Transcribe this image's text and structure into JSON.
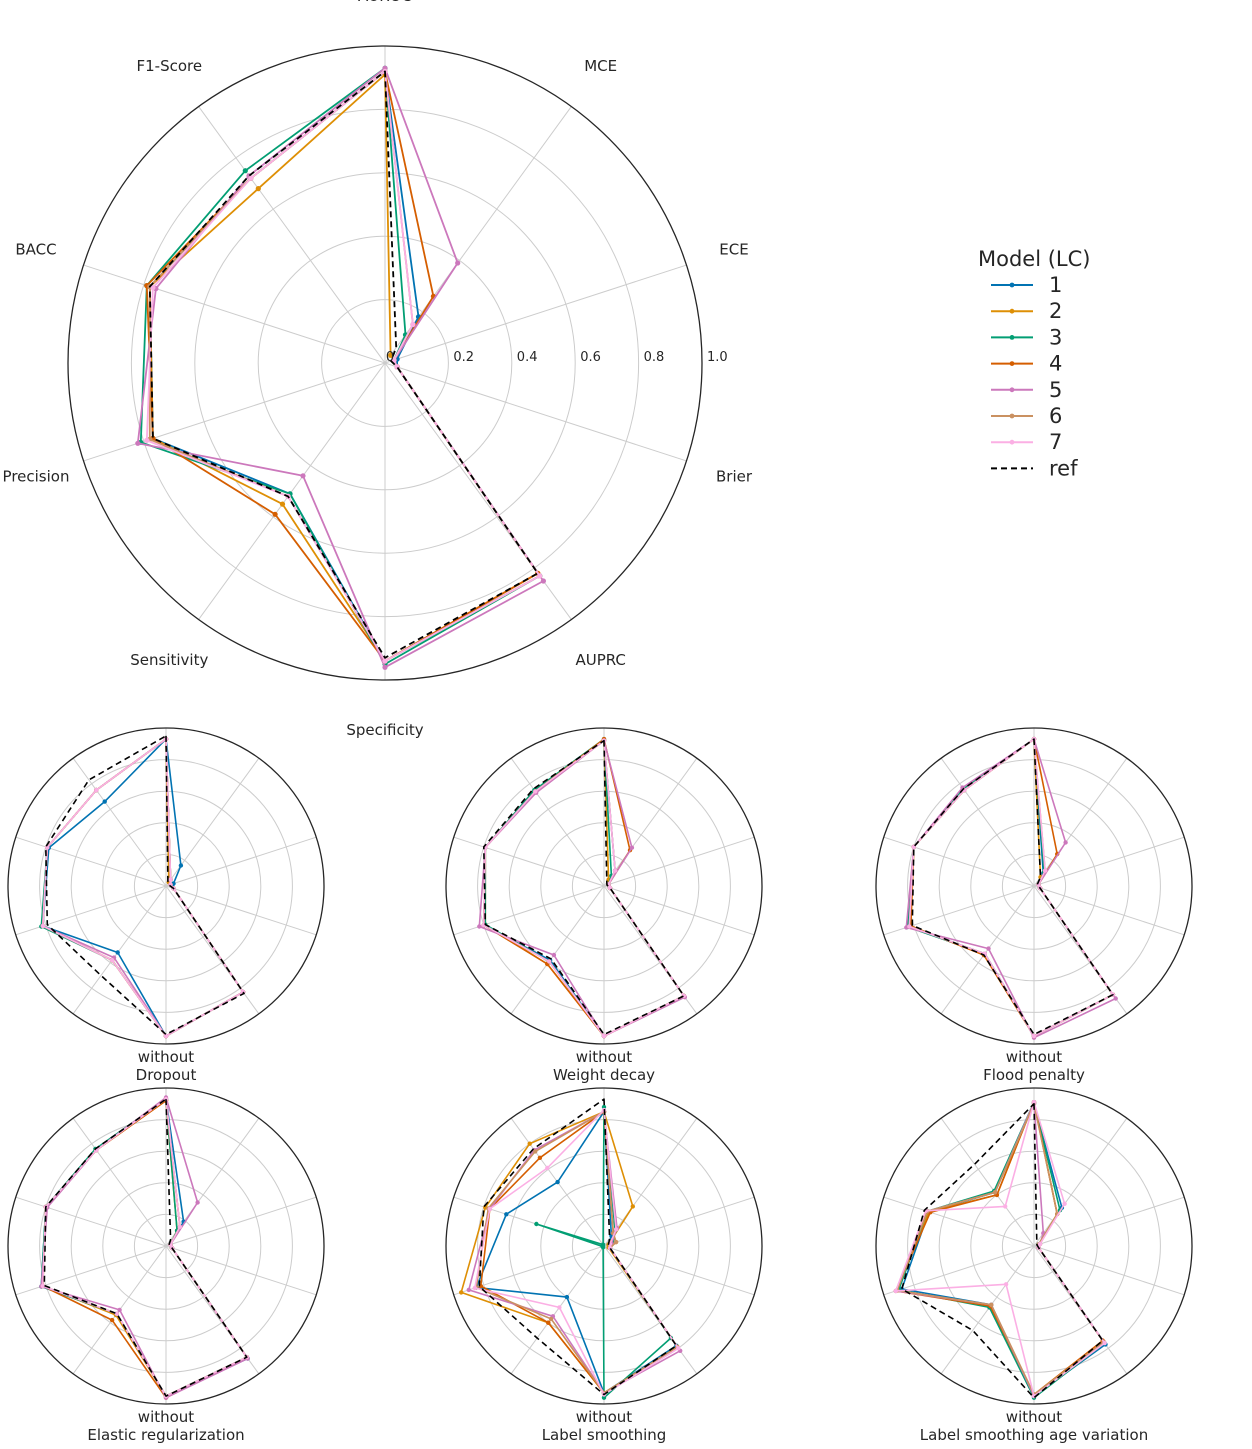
{
  "chart_data": {
    "type": "radar",
    "axes": [
      "AUROC",
      "MCE",
      "ECE",
      "Brier",
      "AUPRC",
      "Specificity",
      "Sensitivity",
      "Precision",
      "BACC",
      "F1-Score"
    ],
    "rlim": [
      0,
      1
    ],
    "radial_ticks": [
      "0",
      "0.2",
      "0.4",
      "0.6",
      "0.8",
      "1.0"
    ],
    "grid": true,
    "legend": {
      "title": "Model (LC)",
      "position": "right",
      "entries": [
        "1",
        "2",
        "3",
        "4",
        "5",
        "6",
        "7",
        "ref"
      ]
    },
    "colors": {
      "1": "#0173b2",
      "2": "#de8f05",
      "3": "#029e73",
      "4": "#d55e00",
      "5": "#cc78bc",
      "6": "#ca9161",
      "7": "#fbafe4",
      "ref": "#000000"
    },
    "panels": [
      {
        "id": "main",
        "caption": [
          "",
          ""
        ],
        "series": {
          "1": [
            0.92,
            0.18,
            0.04,
            0.04,
            0.83,
            0.94,
            0.51,
            0.77,
            0.78,
            0.72
          ],
          "2": [
            0.91,
            0.03,
            0.03,
            0.04,
            0.82,
            0.94,
            0.55,
            0.77,
            0.78,
            0.68
          ],
          "3": [
            0.93,
            0.11,
            0.03,
            0.04,
            0.83,
            0.95,
            0.51,
            0.81,
            0.79,
            0.75
          ],
          "4": [
            0.92,
            0.26,
            0.03,
            0.04,
            0.82,
            0.94,
            0.59,
            0.77,
            0.79,
            0.72
          ],
          "5": [
            0.93,
            0.39,
            0.03,
            0.04,
            0.85,
            0.96,
            0.44,
            0.82,
            0.76,
            0.73
          ],
          "6": [
            0.92,
            0.15,
            0.03,
            0.04,
            0.83,
            0.94,
            0.52,
            0.78,
            0.78,
            0.72
          ],
          "7": [
            0.92,
            0.15,
            0.03,
            0.04,
            0.83,
            0.94,
            0.52,
            0.79,
            0.77,
            0.72
          ],
          "ref": [
            0.92,
            0.06,
            0.02,
            0.04,
            0.82,
            0.93,
            0.52,
            0.77,
            0.78,
            0.73
          ]
        }
      },
      {
        "id": "no-dropout",
        "caption": [
          "without",
          "Dropout"
        ],
        "series": {
          "1": [
            0.93,
            0.16,
            0.05,
            0.05,
            0.83,
            0.95,
            0.52,
            0.82,
            0.78,
            0.66
          ],
          "2": [
            0.93,
            0.03,
            0.03,
            0.05,
            0.83,
            0.95,
            0.58,
            0.82,
            0.79,
            0.75
          ],
          "3": [
            0.93,
            0.05,
            0.03,
            0.05,
            0.83,
            0.95,
            0.58,
            0.83,
            0.79,
            0.75
          ],
          "4": [
            0.93,
            0.05,
            0.03,
            0.05,
            0.83,
            0.95,
            0.58,
            0.82,
            0.79,
            0.75
          ],
          "5": [
            0.93,
            0.05,
            0.03,
            0.05,
            0.83,
            0.95,
            0.56,
            0.82,
            0.79,
            0.75
          ],
          "6": [
            0.93,
            0.05,
            0.03,
            0.05,
            0.83,
            0.95,
            0.58,
            0.82,
            0.79,
            0.75
          ],
          "7": [
            0.93,
            0.05,
            0.03,
            0.05,
            0.83,
            0.95,
            0.58,
            0.82,
            0.79,
            0.75
          ],
          "ref": [
            0.95,
            0.02,
            0.02,
            0.05,
            0.84,
            0.94,
            0.7,
            0.79,
            0.8,
            0.83
          ]
        }
      },
      {
        "id": "no-weight-decay",
        "caption": [
          "without",
          "Weight decay"
        ],
        "series": {
          "1": [
            0.92,
            0.12,
            0.03,
            0.04,
            0.86,
            0.95,
            0.58,
            0.8,
            0.79,
            0.74
          ],
          "2": [
            0.92,
            0.05,
            0.03,
            0.04,
            0.86,
            0.95,
            0.61,
            0.79,
            0.79,
            0.74
          ],
          "3": [
            0.93,
            0.08,
            0.03,
            0.04,
            0.86,
            0.95,
            0.59,
            0.79,
            0.79,
            0.75
          ],
          "4": [
            0.93,
            0.28,
            0.03,
            0.04,
            0.86,
            0.95,
            0.61,
            0.8,
            0.79,
            0.74
          ],
          "5": [
            0.92,
            0.3,
            0.03,
            0.04,
            0.87,
            0.95,
            0.54,
            0.83,
            0.79,
            0.73
          ],
          "6": [
            0.92,
            0.12,
            0.03,
            0.04,
            0.86,
            0.95,
            0.59,
            0.8,
            0.79,
            0.74
          ],
          "7": [
            0.92,
            0.12,
            0.03,
            0.04,
            0.86,
            0.95,
            0.59,
            0.8,
            0.79,
            0.74
          ],
          "ref": [
            0.92,
            0.03,
            0.02,
            0.04,
            0.86,
            0.94,
            0.57,
            0.79,
            0.8,
            0.76
          ]
        }
      },
      {
        "id": "no-flood-penalty",
        "caption": [
          "without",
          "Flood penalty"
        ],
        "series": {
          "1": [
            0.93,
            0.1,
            0.03,
            0.04,
            0.85,
            0.95,
            0.53,
            0.83,
            0.8,
            0.75
          ],
          "2": [
            0.93,
            0.07,
            0.03,
            0.04,
            0.85,
            0.95,
            0.54,
            0.82,
            0.8,
            0.75
          ],
          "3": [
            0.93,
            0.11,
            0.03,
            0.04,
            0.85,
            0.95,
            0.53,
            0.84,
            0.8,
            0.76
          ],
          "4": [
            0.93,
            0.25,
            0.03,
            0.04,
            0.85,
            0.95,
            0.54,
            0.82,
            0.8,
            0.75
          ],
          "5": [
            0.93,
            0.34,
            0.03,
            0.04,
            0.88,
            0.96,
            0.49,
            0.85,
            0.8,
            0.77
          ],
          "6": [
            0.93,
            0.12,
            0.03,
            0.04,
            0.85,
            0.95,
            0.53,
            0.83,
            0.8,
            0.75
          ],
          "7": [
            0.93,
            0.12,
            0.03,
            0.04,
            0.85,
            0.95,
            0.53,
            0.83,
            0.8,
            0.75
          ],
          "ref": [
            0.93,
            0.07,
            0.02,
            0.04,
            0.85,
            0.94,
            0.54,
            0.81,
            0.8,
            0.76
          ]
        }
      },
      {
        "id": "no-elastic-reg",
        "caption": [
          "without",
          "Elastic regularization"
        ],
        "series": {
          "1": [
            0.93,
            0.19,
            0.03,
            0.04,
            0.88,
            0.95,
            0.53,
            0.83,
            0.8,
            0.75
          ],
          "2": [
            0.92,
            0.12,
            0.03,
            0.04,
            0.87,
            0.95,
            0.54,
            0.82,
            0.8,
            0.75
          ],
          "3": [
            0.93,
            0.12,
            0.03,
            0.04,
            0.87,
            0.95,
            0.53,
            0.83,
            0.8,
            0.76
          ],
          "4": [
            0.92,
            0.15,
            0.03,
            0.04,
            0.87,
            0.96,
            0.58,
            0.82,
            0.8,
            0.75
          ],
          "5": [
            0.94,
            0.34,
            0.03,
            0.04,
            0.88,
            0.96,
            0.5,
            0.83,
            0.79,
            0.75
          ],
          "6": [
            0.93,
            0.15,
            0.03,
            0.04,
            0.87,
            0.95,
            0.53,
            0.82,
            0.8,
            0.75
          ],
          "7": [
            0.93,
            0.15,
            0.03,
            0.04,
            0.87,
            0.95,
            0.53,
            0.82,
            0.8,
            0.75
          ],
          "ref": [
            0.93,
            0.05,
            0.02,
            0.04,
            0.87,
            0.95,
            0.53,
            0.81,
            0.8,
            0.76
          ]
        }
      },
      {
        "id": "no-label-smoothing",
        "caption": [
          "without",
          "Label smoothing"
        ],
        "series": {
          "1": [
            0.85,
            0.08,
            0.03,
            0.04,
            0.78,
            0.93,
            0.4,
            0.85,
            0.65,
            0.5
          ],
          "2": [
            0.85,
            0.31,
            0.03,
            0.03,
            0.79,
            0.93,
            0.6,
            0.95,
            0.79,
            0.8
          ],
          "3": [
            0.88,
            0.12,
            0.06,
            0.04,
            0.72,
            0.96,
            0.01,
            0.01,
            0.45,
            0.01
          ],
          "4": [
            0.85,
            0.1,
            0.08,
            0.04,
            0.79,
            0.93,
            0.6,
            0.82,
            0.76,
            0.69
          ],
          "5": [
            0.85,
            0.14,
            0.05,
            0.04,
            0.82,
            0.93,
            0.55,
            0.9,
            0.76,
            0.75
          ],
          "6": [
            0.85,
            0.1,
            0.08,
            0.04,
            0.79,
            0.93,
            0.57,
            0.85,
            0.77,
            0.74
          ],
          "7": [
            0.86,
            0.13,
            0.04,
            0.04,
            0.8,
            0.94,
            0.48,
            0.86,
            0.76,
            0.61
          ],
          "ref": [
            0.93,
            0.06,
            0.03,
            0.04,
            0.78,
            0.94,
            0.72,
            0.83,
            0.8,
            0.76
          ]
        }
      },
      {
        "id": "no-label-smoothing-age",
        "caption": [
          "without",
          "Label smoothing age variation"
        ],
        "series": {
          "1": [
            0.9,
            0.3,
            0.03,
            0.03,
            0.77,
            0.95,
            0.46,
            0.88,
            0.7,
            0.42
          ],
          "2": [
            0.91,
            0.25,
            0.03,
            0.03,
            0.75,
            0.95,
            0.47,
            0.91,
            0.7,
            0.4
          ],
          "3": [
            0.91,
            0.28,
            0.03,
            0.03,
            0.76,
            0.96,
            0.48,
            0.9,
            0.71,
            0.43
          ],
          "4": [
            0.91,
            0.25,
            0.04,
            0.03,
            0.74,
            0.94,
            0.47,
            0.92,
            0.69,
            0.4
          ],
          "5": [
            0.91,
            0.1,
            0.04,
            0.03,
            0.75,
            0.95,
            0.46,
            0.92,
            0.71,
            0.42
          ],
          "6": [
            0.9,
            0.25,
            0.03,
            0.03,
            0.75,
            0.94,
            0.46,
            0.91,
            0.71,
            0.42
          ],
          "7": [
            0.91,
            0.33,
            0.04,
            0.03,
            0.76,
            0.95,
            0.3,
            0.92,
            0.72,
            0.31
          ],
          "ref": [
            0.9,
            0.03,
            0.02,
            0.03,
            0.74,
            0.96,
            0.66,
            0.88,
            0.73,
            0.64
          ]
        }
      }
    ]
  }
}
